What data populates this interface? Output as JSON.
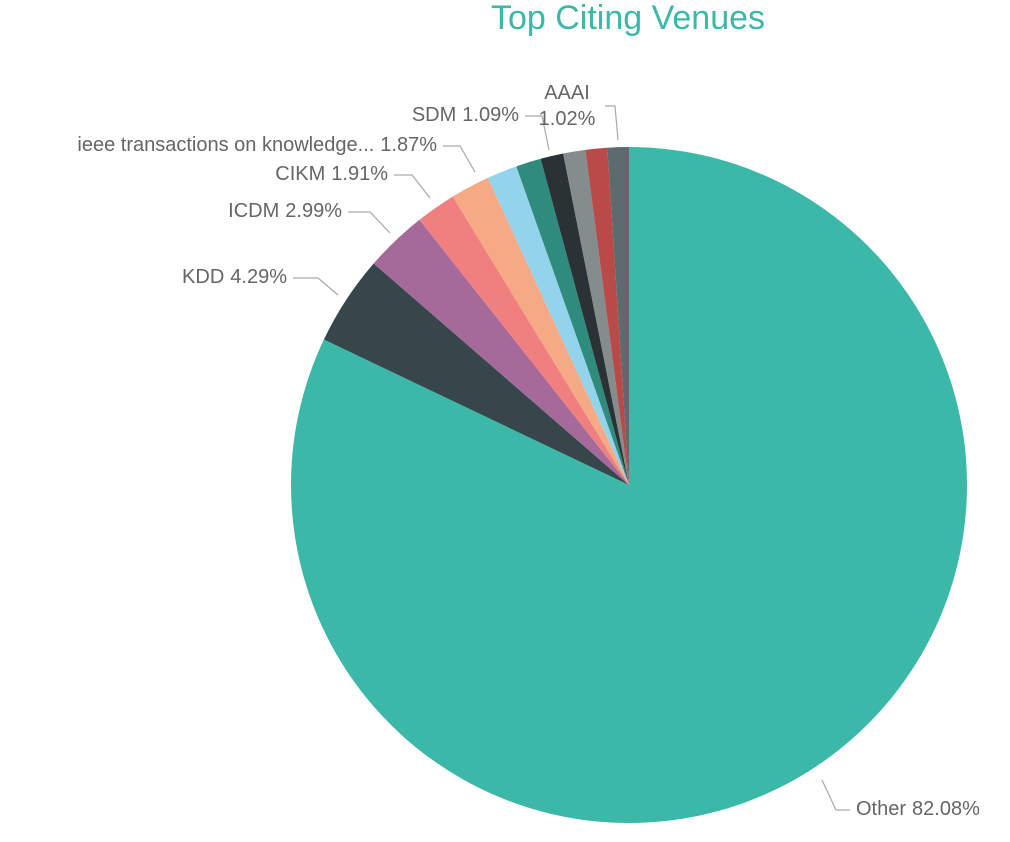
{
  "chart_data": {
    "type": "pie",
    "title": "Top Citing Venues",
    "categories": [
      "Other",
      "KDD",
      "ICDM",
      "CIKM",
      "ieee transactions on knowledge...",
      null,
      null,
      "SDM",
      null,
      null,
      "AAAI"
    ],
    "values": [
      82.08,
      4.29,
      2.99,
      1.91,
      1.87,
      1.45,
      1.2,
      1.09,
      1.06,
      1.04,
      1.02
    ],
    "value_labels": [
      "82.08%",
      "4.29%",
      "2.99%",
      "1.91%",
      "1.87%",
      null,
      null,
      "1.09%",
      null,
      null,
      "1.02%"
    ],
    "colors": [
      "#3cb8a9",
      "#37464a",
      "#a56a99",
      "#f08080",
      "#f5a984",
      "#93d3eb",
      "#2e8b7e",
      "#2a3235",
      "#858c8c",
      "#b84a4a",
      "#5d6b6e"
    ]
  }
}
